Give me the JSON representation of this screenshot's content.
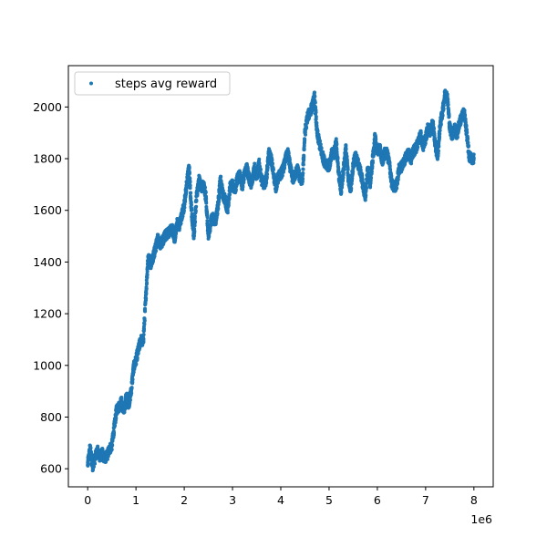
{
  "chart_data": {
    "type": "scatter",
    "title": "",
    "xlabel": "",
    "ylabel": "",
    "x_offset_label": "1e6",
    "xlim": [
      -0.4,
      8.4
    ],
    "ylim": [
      530,
      2160
    ],
    "x_ticks": [
      0,
      1,
      2,
      3,
      4,
      5,
      6,
      7,
      8
    ],
    "y_ticks": [
      600,
      800,
      1000,
      1200,
      1400,
      1600,
      1800,
      2000
    ],
    "legend_position": "upper-left",
    "grid": false,
    "series": [
      {
        "name": "steps avg reward",
        "color": "#1f77b4",
        "x_unit": "1e6 steps",
        "x": [
          0.0,
          0.05,
          0.1,
          0.15,
          0.2,
          0.25,
          0.3,
          0.35,
          0.4,
          0.45,
          0.5,
          0.55,
          0.6,
          0.65,
          0.7,
          0.75,
          0.8,
          0.85,
          0.9,
          0.95,
          1.0,
          1.05,
          1.1,
          1.15,
          1.2,
          1.25,
          1.3,
          1.35,
          1.4,
          1.45,
          1.5,
          1.55,
          1.6,
          1.65,
          1.7,
          1.75,
          1.8,
          1.85,
          1.9,
          1.95,
          2.0,
          2.05,
          2.1,
          2.15,
          2.2,
          2.25,
          2.3,
          2.35,
          2.4,
          2.45,
          2.5,
          2.55,
          2.6,
          2.65,
          2.7,
          2.75,
          2.8,
          2.85,
          2.9,
          2.95,
          3.0,
          3.05,
          3.1,
          3.15,
          3.2,
          3.25,
          3.3,
          3.35,
          3.4,
          3.45,
          3.5,
          3.55,
          3.6,
          3.65,
          3.7,
          3.75,
          3.8,
          3.85,
          3.9,
          3.95,
          4.0,
          4.05,
          4.1,
          4.15,
          4.2,
          4.25,
          4.3,
          4.35,
          4.4,
          4.45,
          4.5,
          4.55,
          4.6,
          4.65,
          4.7,
          4.75,
          4.8,
          4.85,
          4.9,
          4.95,
          5.0,
          5.05,
          5.1,
          5.15,
          5.2,
          5.25,
          5.3,
          5.35,
          5.4,
          5.45,
          5.5,
          5.55,
          5.6,
          5.65,
          5.7,
          5.75,
          5.8,
          5.85,
          5.9,
          5.95,
          6.0,
          6.05,
          6.1,
          6.15,
          6.2,
          6.25,
          6.3,
          6.35,
          6.4,
          6.45,
          6.5,
          6.55,
          6.6,
          6.65,
          6.7,
          6.75,
          6.8,
          6.85,
          6.9,
          6.95,
          7.0,
          7.05,
          7.1,
          7.15,
          7.2,
          7.25,
          7.3,
          7.35,
          7.4,
          7.45,
          7.5,
          7.55,
          7.6,
          7.65,
          7.7,
          7.75,
          7.8,
          7.85,
          7.9,
          7.95,
          8.0
        ],
        "y": [
          615,
          680,
          610,
          640,
          670,
          645,
          660,
          640,
          650,
          675,
          690,
          760,
          830,
          840,
          860,
          820,
          880,
          850,
          900,
          990,
          1020,
          1060,
          1100,
          1090,
          1250,
          1420,
          1390,
          1420,
          1450,
          1490,
          1470,
          1480,
          1500,
          1510,
          1520,
          1530,
          1490,
          1550,
          1540,
          1580,
          1620,
          1700,
          1770,
          1600,
          1500,
          1640,
          1720,
          1690,
          1700,
          1650,
          1490,
          1560,
          1570,
          1560,
          1620,
          1720,
          1660,
          1640,
          1600,
          1690,
          1700,
          1680,
          1720,
          1740,
          1690,
          1750,
          1760,
          1720,
          1700,
          1770,
          1730,
          1780,
          1720,
          1700,
          1720,
          1820,
          1800,
          1740,
          1690,
          1730,
          1740,
          1760,
          1800,
          1820,
          1760,
          1720,
          1740,
          1760,
          1720,
          1720,
          1900,
          1960,
          1980,
          2000,
          2040,
          1900,
          1860,
          1820,
          1790,
          1780,
          1760,
          1820,
          1820,
          1860,
          1740,
          1680,
          1760,
          1840,
          1720,
          1680,
          1780,
          1810,
          1780,
          1750,
          1700,
          1650,
          1760,
          1700,
          1790,
          1880,
          1830,
          1840,
          1790,
          1820,
          1820,
          1780,
          1700,
          1690,
          1700,
          1760,
          1770,
          1790,
          1810,
          1820,
          1800,
          1830,
          1840,
          1870,
          1890,
          1850,
          1880,
          1920,
          1900,
          1940,
          1850,
          1810,
          1930,
          1980,
          2050,
          2040,
          1920,
          1890,
          1920,
          1890,
          1940,
          1960,
          1980,
          1900,
          1810,
          1800,
          1800
        ]
      }
    ]
  }
}
